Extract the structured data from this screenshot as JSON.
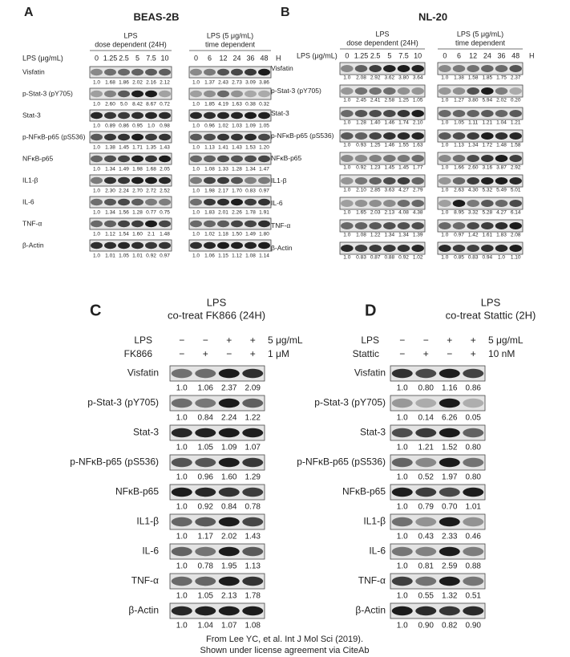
{
  "panels": [
    {
      "letter": "A",
      "title": "BEAS-2B",
      "lane_label": "LPS (μg/mL)",
      "unit_label": "H",
      "groups": [
        {
          "header": [
            "LPS",
            "dose dependent (24H)"
          ],
          "lanes": [
            "0",
            "1.25",
            "2.5",
            "5",
            "7.5",
            "10"
          ]
        },
        {
          "header": [
            "LPS (5 μg/mL)",
            "time dependent"
          ],
          "lanes": [
            "0",
            "6",
            "12",
            "24",
            "36",
            "48"
          ]
        }
      ],
      "rows": [
        {
          "label": "Visfatin",
          "values": [
            [
              "1.0",
              "1.68",
              "1.86",
              "2.02",
              "2.16",
              "2.12"
            ],
            [
              "1.0",
              "1.37",
              "2.43",
              "2.73",
              "3.09",
              "3.86"
            ]
          ]
        },
        {
          "label": "p-Stat-3 (pY705)",
          "values": [
            [
              "1.0",
              "2.60",
              "5.0",
              "8.42",
              "8.67",
              "0.72"
            ],
            [
              "1.0",
              "1.85",
              "4.19",
              "1.63",
              "0.38",
              "0.32"
            ]
          ]
        },
        {
          "label": "Stat-3",
          "values": [
            [
              "1.0",
              "0.89",
              "0.86",
              "0.95",
              "1.0",
              "0.98"
            ],
            [
              "1.0",
              "0.96",
              "1.02",
              "1.03",
              "1.09",
              "1.05"
            ]
          ]
        },
        {
          "label": "p-NFκB-p65 (pS536)",
          "values": [
            [
              "1.0",
              "1.38",
              "1.45",
              "1.71",
              "1.35",
              "1.43"
            ],
            [
              "1.0",
              "1.13",
              "1.41",
              "1.43",
              "1.53",
              "1.20"
            ]
          ]
        },
        {
          "label": "NFκB-p65",
          "values": [
            [
              "1.0",
              "1.34",
              "1.49",
              "1.98",
              "1.68",
              "2.05"
            ],
            [
              "1.0",
              "1.08",
              "1.33",
              "1.28",
              "1.34",
              "1.47"
            ]
          ]
        },
        {
          "label": "IL1-β",
          "values": [
            [
              "1.0",
              "2.30",
              "2.24",
              "2.70",
              "2.72",
              "2.52"
            ],
            [
              "1.0",
              "1.98",
              "2.17",
              "1.70",
              "0.83",
              "0.97"
            ]
          ]
        },
        {
          "label": "IL-6",
          "values": [
            [
              "1.0",
              "1.34",
              "1.56",
              "1.28",
              "0.77",
              "0.75"
            ],
            [
              "1.0",
              "1.83",
              "2.01",
              "2.26",
              "1.78",
              "1.91"
            ]
          ]
        },
        {
          "label": "TNF-α",
          "values": [
            [
              "1.0",
              "1.12",
              "1.54",
              "1.60",
              "2.1",
              "1.48"
            ],
            [
              "1.0",
              "1.02",
              "1.18",
              "1.50",
              "1.49",
              "1.80"
            ]
          ]
        },
        {
          "label": "β-Actin",
          "values": [
            [
              "1.0",
              "1.01",
              "1.05",
              "1.01",
              "0.92",
              "0.97"
            ],
            [
              "1.0",
              "1.06",
              "1.15",
              "1.12",
              "1.08",
              "1.14"
            ]
          ]
        }
      ]
    },
    {
      "letter": "B",
      "title": "NL-20",
      "lane_label": "LPS (μg/mL)",
      "unit_label": "H",
      "groups": [
        {
          "header": [
            "LPS",
            "dose dependent (24H)"
          ],
          "lanes": [
            "0",
            "1.25",
            "2.5",
            "5",
            "7.5",
            "10"
          ]
        },
        {
          "header": [
            "LPS (5 μg/mL)",
            "time dependent"
          ],
          "lanes": [
            "0",
            "6",
            "12",
            "24",
            "36",
            "48"
          ]
        }
      ],
      "rows": [
        {
          "label": "Visfatin",
          "values": [
            [
              "1.0",
              "2.08",
              "2.92",
              "3.62",
              "3.80",
              "3.64"
            ],
            [
              "1.0",
              "1.38",
              "1.58",
              "1.85",
              "1.75",
              "2.37"
            ]
          ]
        },
        {
          "label": "p-Stat-3 (pY705)",
          "values": [
            [
              "1.0",
              "2.45",
              "2.41",
              "2.58",
              "1.25",
              "1.05"
            ],
            [
              "1.0",
              "1.27",
              "3.80",
              "5.94",
              "2.02",
              "0.20"
            ]
          ]
        },
        {
          "label": "Stat-3",
          "values": [
            [
              "1.0",
              "1.28",
              "1.40",
              "1.46",
              "1.74",
              "2.10"
            ],
            [
              "1.0",
              "1.05",
              "1.11",
              "1.21",
              "1.04",
              "1.21"
            ]
          ]
        },
        {
          "label": "p-NFκB-p65 (pS536)",
          "values": [
            [
              "1.0",
              "0.93",
              "1.25",
              "1.46",
              "1.55",
              "1.63"
            ],
            [
              "1.0",
              "1.13",
              "1.34",
              "1.72",
              "1.48",
              "1.58"
            ]
          ]
        },
        {
          "label": "NFκB-p65",
          "values": [
            [
              "1.0",
              "0.92",
              "1.23",
              "1.45",
              "1.45",
              "1.77"
            ],
            [
              "1.0",
              "1.66",
              "2.60",
              "3.16",
              "3.87",
              "2.92"
            ]
          ]
        },
        {
          "label": "IL1-β",
          "values": [
            [
              "1.0",
              "2.10",
              "2.85",
              "3.63",
              "4.27",
              "2.79"
            ],
            [
              "1.0",
              "2.63",
              "4.30",
              "5.32",
              "5.49",
              "5.01"
            ]
          ]
        },
        {
          "label": "IL-6",
          "values": [
            [
              "1.0",
              "1.65",
              "2.03",
              "2.13",
              "4.08",
              "4.38"
            ],
            [
              "1.0",
              "8.95",
              "3.32",
              "5.28",
              "4.27",
              "6.14"
            ]
          ]
        },
        {
          "label": "TNF-α",
          "values": [
            [
              "1.0",
              "1.08",
              "1.22",
              "1.34",
              "1.34",
              "1.39"
            ],
            [
              "1.0",
              "0.97",
              "1.42",
              "1.61",
              "1.83",
              "2.08"
            ]
          ]
        },
        {
          "label": "β-Actin",
          "values": [
            [
              "1.0",
              "0.83",
              "0.87",
              "0.88",
              "0.92",
              "1.02"
            ],
            [
              "1.0",
              "0.85",
              "0.83",
              "0.94",
              "1.0",
              "1.10"
            ]
          ]
        }
      ]
    },
    {
      "letter": "C",
      "title": [
        "LPS",
        "co-treat FK866 (24H)"
      ],
      "treatments": [
        {
          "label": "LPS",
          "signs": [
            "−",
            "−",
            "+",
            "+"
          ],
          "dose": "5 μg/mL"
        },
        {
          "label": "FK866",
          "signs": [
            "−",
            "+",
            "−",
            "+"
          ],
          "dose": "1 μM"
        }
      ],
      "rows": [
        {
          "label": "Visfatin",
          "values": [
            "1.0",
            "1.06",
            "2.37",
            "2.09"
          ]
        },
        {
          "label": "p-Stat-3 (pY705)",
          "values": [
            "1.0",
            "0.84",
            "2.24",
            "1.22"
          ]
        },
        {
          "label": "Stat-3",
          "values": [
            "1.0",
            "1.05",
            "1.09",
            "1.07"
          ]
        },
        {
          "label": "p-NFκB-p65 (pS536)",
          "values": [
            "1.0",
            "0.96",
            "1.60",
            "1.29"
          ]
        },
        {
          "label": "NFκB-p65",
          "values": [
            "1.0",
            "0.92",
            "0.84",
            "0.78"
          ]
        },
        {
          "label": "IL1-β",
          "values": [
            "1.0",
            "1.17",
            "2.02",
            "1.43"
          ]
        },
        {
          "label": "IL-6",
          "values": [
            "1.0",
            "0.78",
            "1.95",
            "1.13"
          ]
        },
        {
          "label": "TNF-α",
          "values": [
            "1.0",
            "1.05",
            "2.13",
            "1.78"
          ]
        },
        {
          "label": "β-Actin",
          "values": [
            "1.0",
            "1.04",
            "1.07",
            "1.08"
          ]
        }
      ]
    },
    {
      "letter": "D",
      "title": [
        "LPS",
        "co-treat Stattic (2H)"
      ],
      "treatments": [
        {
          "label": "LPS",
          "signs": [
            "−",
            "−",
            "+",
            "+"
          ],
          "dose": "5 μg/mL"
        },
        {
          "label": "Stattic",
          "signs": [
            "−",
            "+",
            "−",
            "+"
          ],
          "dose": "10 nM"
        }
      ],
      "rows": [
        {
          "label": "Visfatin",
          "values": [
            "1.0",
            "0.80",
            "1.16",
            "0.86"
          ]
        },
        {
          "label": "p-Stat-3 (pY705)",
          "values": [
            "1.0",
            "0.14",
            "6.26",
            "0.05"
          ]
        },
        {
          "label": "Stat-3",
          "values": [
            "1.0",
            "1.21",
            "1.52",
            "0.80"
          ]
        },
        {
          "label": "p-NFκB-p65 (pS536)",
          "values": [
            "1.0",
            "0.52",
            "1.97",
            "0.80"
          ]
        },
        {
          "label": "NFκB-p65",
          "values": [
            "1.0",
            "0.79",
            "0.70",
            "1.01"
          ]
        },
        {
          "label": "IL1-β",
          "values": [
            "1.0",
            "0.43",
            "2.33",
            "0.46"
          ]
        },
        {
          "label": "IL-6",
          "values": [
            "1.0",
            "0.81",
            "2.59",
            "0.88"
          ]
        },
        {
          "label": "TNF-α",
          "values": [
            "1.0",
            "0.55",
            "1.32",
            "0.51"
          ]
        },
        {
          "label": "β-Actin",
          "values": [
            "1.0",
            "0.90",
            "0.82",
            "0.90"
          ]
        }
      ]
    }
  ],
  "footer": [
    "From Lee YC, et al. Int J Mol Sci (2019).",
    "Shown under license agreement via CiteAb"
  ]
}
